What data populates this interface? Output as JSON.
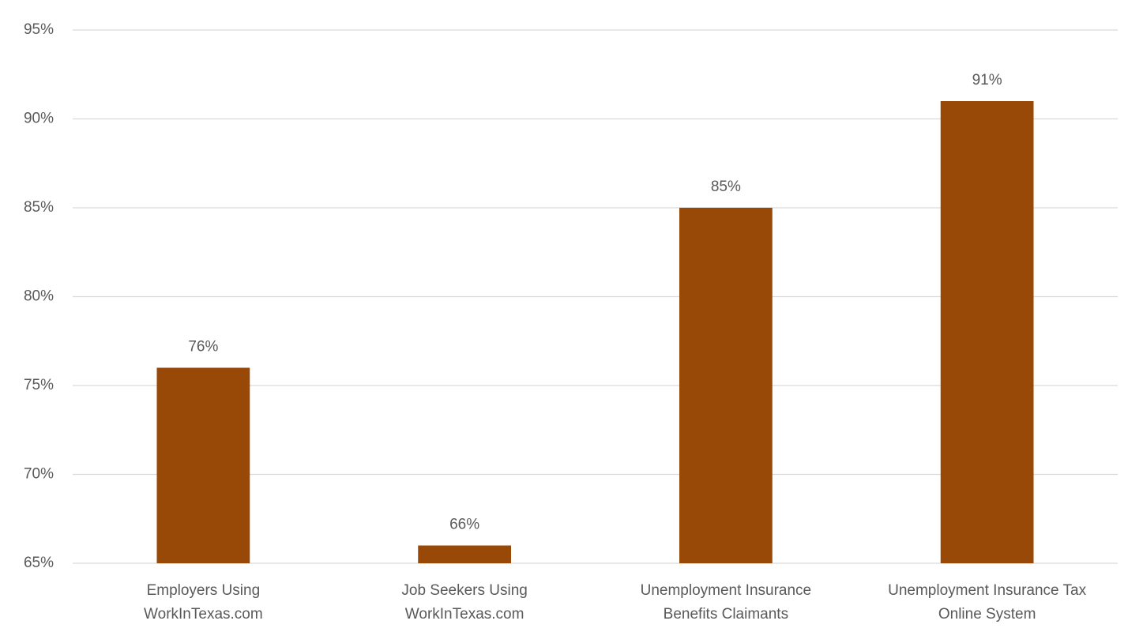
{
  "chart_data": {
    "type": "bar",
    "categories": [
      [
        "Employers Using",
        "WorkInTexas.com"
      ],
      [
        "Job Seekers Using",
        "WorkInTexas.com"
      ],
      [
        "Unemployment Insurance",
        "Benefits Claimants"
      ],
      [
        "Unemployment Insurance Tax",
        "Online System"
      ]
    ],
    "values": [
      76,
      66,
      85,
      91
    ],
    "value_labels": [
      "76%",
      "66%",
      "85%",
      "91%"
    ],
    "color": "#984807",
    "ylim": [
      65,
      95
    ],
    "yticks": [
      {
        "value": 65,
        "label": "65%"
      },
      {
        "value": 70,
        "label": "70%"
      },
      {
        "value": 75,
        "label": "75%"
      },
      {
        "value": 80,
        "label": "80%"
      },
      {
        "value": 85,
        "label": "85%"
      },
      {
        "value": 90,
        "label": "90%"
      },
      {
        "value": 95,
        "label": "95%"
      }
    ],
    "grid": true
  }
}
